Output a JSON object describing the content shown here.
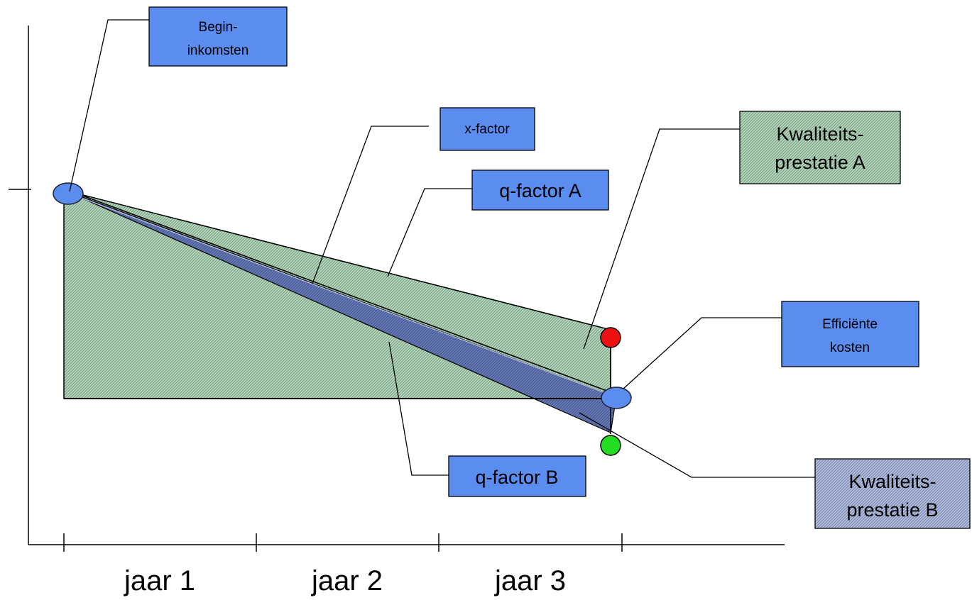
{
  "colors": {
    "box_fill": "#5b8cf0",
    "green_area": "#9cc99c",
    "blue_area": "#5f74b0",
    "band_light_blue": "#b0bedb",
    "red_marker": "#ee1111",
    "green_marker": "#22dd22",
    "ellipse_fill": "#5b8cf0"
  },
  "icons": {
    "begin_marker": "blue-ellipse",
    "end_marker": "blue-ellipse",
    "upper_marker": "red-dot",
    "lower_marker": "green-dot"
  },
  "axis": {
    "x_labels": [
      "jaar 1",
      "jaar 2",
      "jaar 3"
    ]
  },
  "labels": {
    "begin_line1": "Begin-",
    "begin_line2": "inkomsten",
    "x_factor": "x-factor",
    "q_factor_a": "q-factor A",
    "q_factor_b": "q-factor B",
    "kwal_a_line1": "Kwaliteits-",
    "kwal_a_line2": "prestatie A",
    "efficient_line1": "Efficiënte",
    "efficient_line2": "kosten",
    "kwal_b_line1": "Kwaliteits-",
    "kwal_b_line2": "prestatie B"
  }
}
